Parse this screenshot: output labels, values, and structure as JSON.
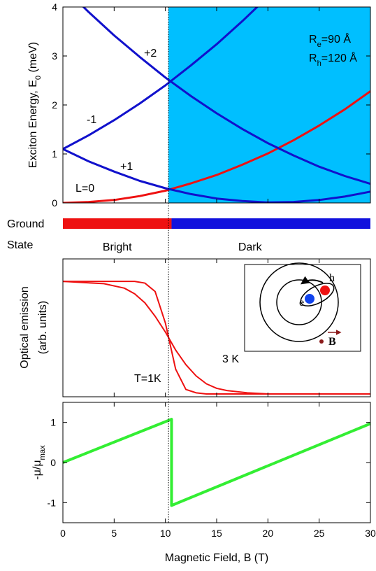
{
  "chart_data": [
    {
      "type": "line",
      "ylabel": {
        "main": "Exciton Energy, E",
        "sub": "0",
        "tail": " (meV)"
      },
      "xlim": [
        0,
        30
      ],
      "xticks": [
        0,
        5,
        10,
        15,
        20,
        25,
        30
      ],
      "ylim": [
        0,
        4
      ],
      "yticks": [
        0,
        1,
        2,
        3,
        4
      ],
      "shade_from": 10.3,
      "shade_color": "#00bfff",
      "x": [
        0,
        2.5,
        5,
        7.5,
        10,
        12.5,
        15,
        17.5,
        20,
        22.5,
        25,
        27.5,
        30
      ],
      "series": [
        {
          "name": "L=0",
          "color": "#ee1111",
          "values": [
            0,
            0.02,
            0.06,
            0.14,
            0.25,
            0.4,
            0.57,
            0.78,
            1.01,
            1.28,
            1.58,
            1.91,
            2.28
          ]
        },
        {
          "name": "+1",
          "color": "#1111cc",
          "values": [
            1.1,
            0.85,
            0.64,
            0.45,
            0.3,
            0.18,
            0.09,
            0.04,
            0.01,
            0.02,
            0.06,
            0.13,
            0.23
          ]
        },
        {
          "name": "-1",
          "color": "#1111cc",
          "values": [
            1.1,
            1.38,
            1.69,
            2.03,
            2.4,
            2.81,
            3.24,
            3.71,
            4.21,
            null,
            null,
            null,
            null
          ]
        },
        {
          "name": "+2",
          "color": "#1111cc",
          "values": [
            4.41,
            3.9,
            3.42,
            2.98,
            2.56,
            2.18,
            1.83,
            1.51,
            1.22,
            0.97,
            0.74,
            0.55,
            0.39
          ]
        }
      ],
      "annotations": [
        {
          "main": "R",
          "sub": "e",
          "tail": "=90 Å"
        },
        {
          "main": "R",
          "sub": "h",
          "tail": "=120 Å"
        }
      ]
    },
    {
      "type": "strip",
      "label_lines": [
        "Ground",
        "State"
      ],
      "categories": [
        "Bright",
        "Dark"
      ],
      "edges": [
        0,
        10.6,
        30
      ],
      "colors": [
        "#ee1111",
        "#1111dd"
      ]
    },
    {
      "type": "line",
      "ylabel_lines": [
        "Optical emission",
        "(arb. units)"
      ],
      "xlim": [
        0,
        30
      ],
      "ylim": [
        -0.025,
        1.2
      ],
      "x": [
        0,
        2,
        4,
        6,
        7,
        8,
        9,
        10,
        11,
        12,
        13,
        14,
        15,
        16,
        18,
        20,
        25,
        30
      ],
      "series": [
        {
          "name": "T=1K",
          "color": "#ee1111",
          "values": [
            1,
            1,
            1,
            1,
            1,
            0.985,
            0.91,
            0.63,
            0.22,
            0.04,
            0.01,
            0,
            0,
            0,
            0,
            0,
            0,
            0
          ]
        },
        {
          "name": "3 K",
          "color": "#ee1111",
          "values": [
            1,
            0.99,
            0.98,
            0.94,
            0.89,
            0.81,
            0.69,
            0.55,
            0.39,
            0.26,
            0.16,
            0.09,
            0.05,
            0.03,
            0.01,
            0,
            0,
            0
          ]
        }
      ],
      "inset_labels": [
        "h",
        "e",
        "B"
      ]
    },
    {
      "type": "line",
      "ylabel": {
        "main": "-μ/μ",
        "sub": "max",
        "tail": ""
      },
      "xlim": [
        0,
        30
      ],
      "xticks": [
        0,
        5,
        10,
        15,
        20,
        25,
        30
      ],
      "ylim": [
        -1.5,
        1.5
      ],
      "yticks": [
        -1,
        0,
        1
      ],
      "xlabel": "Magnetic Field, B (T)",
      "x": [
        0,
        10.6,
        10.6,
        30
      ],
      "series": [
        {
          "color": "#33ee33",
          "values": [
            0,
            1.08,
            -1.07,
            0.97
          ]
        }
      ]
    }
  ]
}
